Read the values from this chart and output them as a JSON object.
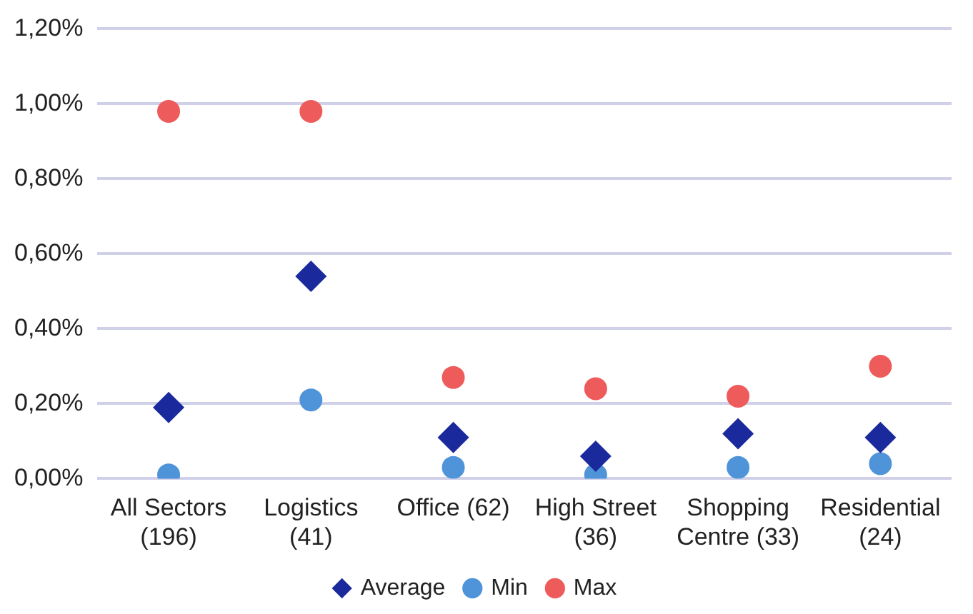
{
  "chart_data": {
    "type": "scatter",
    "categories": [
      "All Sectors (196)",
      "Logistics (41)",
      "Office (62)",
      "High Street (36)",
      "Shopping Centre (33)",
      "Residential (24)"
    ],
    "series": [
      {
        "name": "Average",
        "color": "#1a2a9c",
        "marker": "diamond",
        "values": [
          0.19,
          0.54,
          0.11,
          0.06,
          0.12,
          0.11
        ]
      },
      {
        "name": "Min",
        "color": "#4f94d9",
        "marker": "circle",
        "values": [
          0.01,
          0.21,
          0.03,
          0.01,
          0.03,
          0.04
        ]
      },
      {
        "name": "Max",
        "color": "#ee5b5b",
        "marker": "circle",
        "values": [
          0.98,
          0.98,
          0.27,
          0.24,
          0.22,
          0.3
        ]
      }
    ],
    "ylim": [
      0,
      1.2
    ],
    "yticks": [
      {
        "value": 0,
        "label": "0,00%"
      },
      {
        "value": 0.2,
        "label": "0,20%"
      },
      {
        "value": 0.4,
        "label": "0,40%"
      },
      {
        "value": 0.6,
        "label": "0,60%"
      },
      {
        "value": 0.8,
        "label": "0,80%"
      },
      {
        "value": 1,
        "label": "1,00%"
      },
      {
        "value": 1.2,
        "label": "1,20%"
      }
    ],
    "grid": "y",
    "legend": "bottom"
  }
}
